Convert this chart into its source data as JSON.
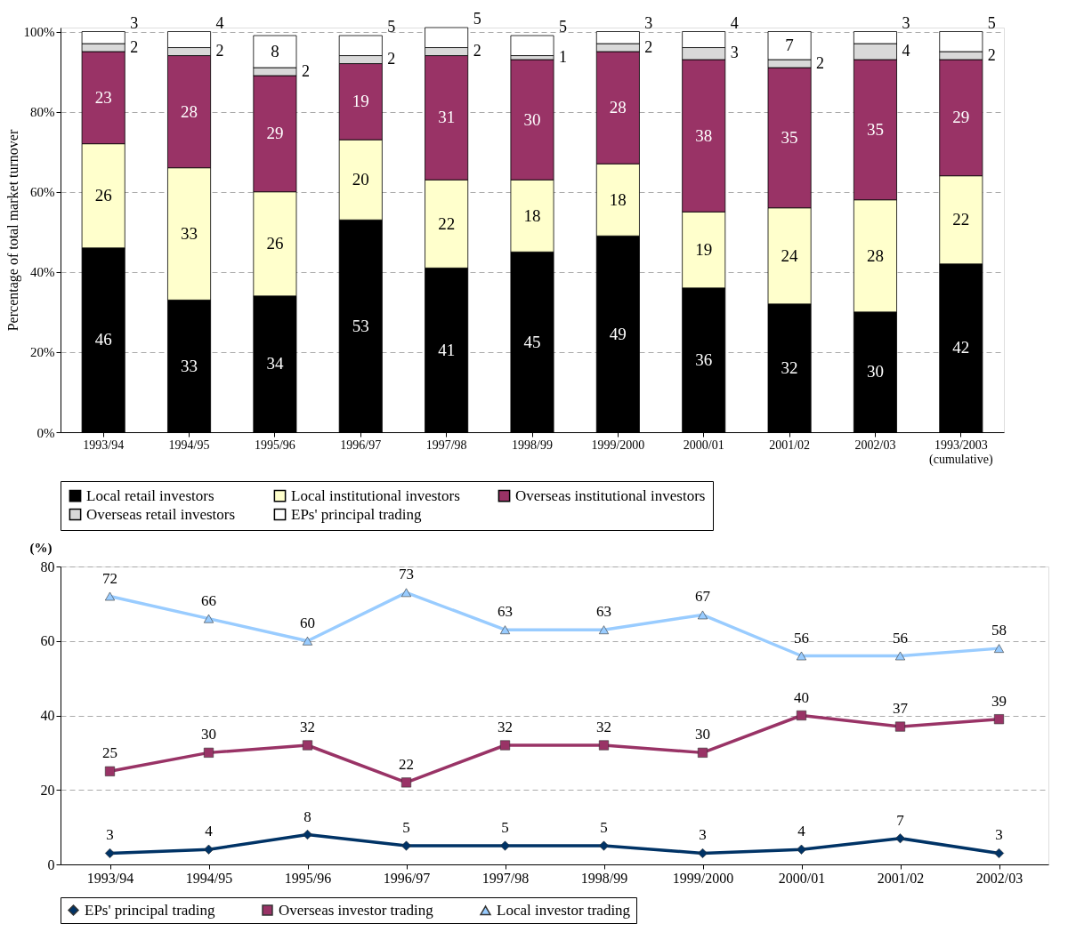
{
  "chart_data": [
    {
      "type": "bar",
      "stacked": true,
      "ylabel": "Percentage of total market turnover",
      "categories": [
        "1993/94",
        "1994/95",
        "1995/96",
        "1996/97",
        "1997/98",
        "1998/99",
        "1999/2000",
        "2000/01",
        "2001/02",
        "2002/03",
        "1993/2003 (cumulative)"
      ],
      "series": [
        {
          "name": "Local retail investors",
          "color": "#000000",
          "values": [
            46,
            33,
            34,
            53,
            41,
            45,
            49,
            36,
            32,
            30,
            42
          ]
        },
        {
          "name": "Local institutional investors",
          "color": "#ffffcc",
          "values": [
            26,
            33,
            26,
            20,
            22,
            18,
            18,
            19,
            24,
            28,
            22
          ]
        },
        {
          "name": "Overseas institutional investors",
          "color": "#993366",
          "values": [
            23,
            28,
            29,
            19,
            31,
            30,
            28,
            38,
            35,
            35,
            29
          ]
        },
        {
          "name": "Overseas retail investors",
          "color": "#d9d9d9",
          "values": [
            2,
            2,
            2,
            2,
            2,
            1,
            2,
            3,
            2,
            4,
            2
          ]
        },
        {
          "name": "EPs' principal trading",
          "color": "#ffffff",
          "values": [
            3,
            4,
            8,
            5,
            5,
            5,
            3,
            4,
            7,
            3,
            5
          ]
        }
      ],
      "ylim": [
        0,
        101
      ],
      "yticks": [
        {
          "value": 0,
          "label": "0%"
        },
        {
          "value": 20,
          "label": "20%"
        },
        {
          "value": 40,
          "label": "40%"
        },
        {
          "value": 60,
          "label": "60%"
        },
        {
          "value": 80,
          "label": "80%"
        },
        {
          "value": 100,
          "label": "100%"
        }
      ],
      "grid": "y",
      "legend": "bottom",
      "data_labels": true
    },
    {
      "type": "line",
      "ylabel": "(%)",
      "categories": [
        "1993/94",
        "1994/95",
        "1995/96",
        "1996/97",
        "1997/98",
        "1998/99",
        "1999/2000",
        "2000/01",
        "2001/02",
        "2002/03"
      ],
      "series": [
        {
          "name": "EPs' principal trading",
          "color": "#003366",
          "marker": "diamond",
          "values": [
            3,
            4,
            8,
            5,
            5,
            5,
            3,
            4,
            7,
            3
          ]
        },
        {
          "name": "Overseas investor trading",
          "color": "#993366",
          "marker": "square",
          "values": [
            25,
            30,
            32,
            22,
            32,
            32,
            30,
            40,
            37,
            39
          ]
        },
        {
          "name": "Local investor trading",
          "color": "#99ccff",
          "marker": "triangle",
          "values": [
            72,
            66,
            60,
            73,
            63,
            63,
            67,
            56,
            56,
            58
          ]
        }
      ],
      "ylim": [
        0,
        80
      ],
      "yticks": [
        0,
        20,
        40,
        60,
        80
      ],
      "grid": "y",
      "legend": "bottom",
      "data_labels": true,
      "line_style": "solid"
    }
  ]
}
